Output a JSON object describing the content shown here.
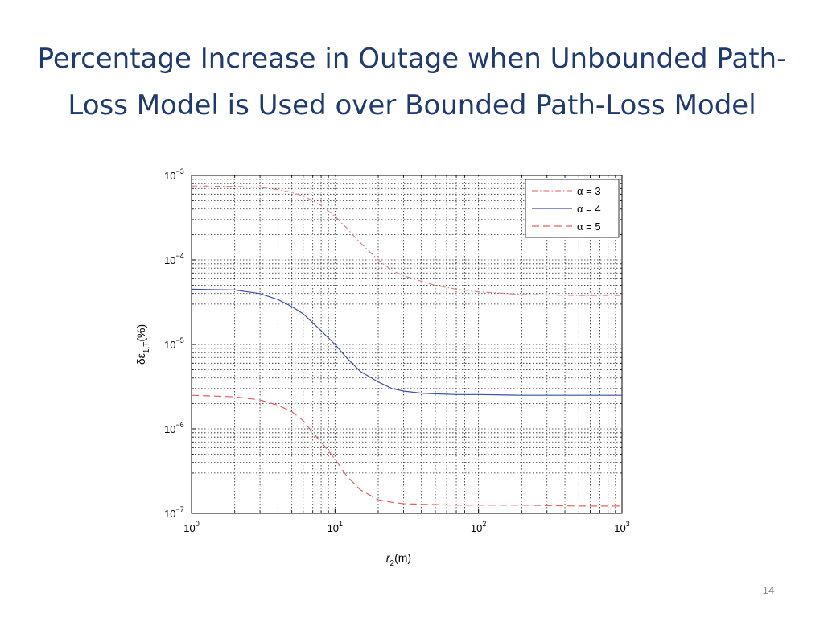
{
  "slide": {
    "title_line1": "Percentage Increase in Outage when Unbounded Path-",
    "title_line2": "Loss Model is Used over Bounded Path-Loss Model",
    "page_number": "14"
  },
  "chart_data": {
    "type": "line",
    "title": "",
    "xlabel_main": "r",
    "xlabel_sub": "2",
    "xlabel_unit": "(m)",
    "ylabel_main": "δε",
    "ylabel_sub": "1,T",
    "ylabel_unit": "(%)",
    "xscale": "log",
    "yscale": "log",
    "xlim": [
      1,
      1000
    ],
    "ylim": [
      1e-07,
      0.001
    ],
    "grid": true,
    "legend_position": "top-right",
    "x_ticks": [
      {
        "value": 1,
        "base": "10",
        "exp": "0"
      },
      {
        "value": 10,
        "base": "10",
        "exp": "1"
      },
      {
        "value": 100,
        "base": "10",
        "exp": "2"
      },
      {
        "value": 1000,
        "base": "10",
        "exp": "3"
      }
    ],
    "y_ticks": [
      {
        "value": 1e-07,
        "base": "10",
        "exp": "−7"
      },
      {
        "value": 1e-06,
        "base": "10",
        "exp": "−6"
      },
      {
        "value": 1e-05,
        "base": "10",
        "exp": "−5"
      },
      {
        "value": 0.0001,
        "base": "10",
        "exp": "−4"
      },
      {
        "value": 0.001,
        "base": "10",
        "exp": "−3"
      }
    ],
    "series": [
      {
        "name": "α = 3",
        "color": "#e08080",
        "dash": "dashdot",
        "x": [
          1,
          2,
          3,
          4,
          5,
          6,
          7,
          8,
          10,
          12,
          15,
          20,
          25,
          30,
          40,
          50,
          70,
          100,
          200,
          500,
          1000
        ],
        "y": [
          0.00075,
          0.00074,
          0.00072,
          0.00068,
          0.00063,
          0.00057,
          0.0005,
          0.00044,
          0.00033,
          0.00024,
          0.00016,
          0.0001,
          7.5e-05,
          6.5e-05,
          5.6e-05,
          5e-05,
          4.5e-05,
          4.2e-05,
          3.9e-05,
          3.8e-05,
          3.8e-05
        ]
      },
      {
        "name": "α = 4",
        "color": "#3c4fa0",
        "dash": "solid",
        "x": [
          1,
          2,
          3,
          4,
          5,
          6,
          7,
          8,
          10,
          12,
          15,
          20,
          25,
          30,
          40,
          50,
          70,
          100,
          200,
          500,
          1000
        ],
        "y": [
          4.5e-05,
          4.4e-05,
          4e-05,
          3.4e-05,
          2.8e-05,
          2.3e-05,
          1.8e-05,
          1.45e-05,
          1e-05,
          7e-06,
          4.8e-06,
          3.6e-06,
          3e-06,
          2.8e-06,
          2.65e-06,
          2.6e-06,
          2.55e-06,
          2.55e-06,
          2.5e-06,
          2.5e-06,
          2.5e-06
        ]
      },
      {
        "name": "α = 5",
        "color": "#e06060",
        "dash": "dashed",
        "x": [
          1,
          2,
          3,
          4,
          5,
          6,
          7,
          8,
          10,
          12,
          15,
          20,
          25,
          30,
          40,
          50,
          70,
          100,
          200,
          500,
          1000
        ],
        "y": [
          2.5e-06,
          2.4e-06,
          2.2e-06,
          1.9e-06,
          1.6e-06,
          1.25e-06,
          9e-07,
          7e-07,
          4.4e-07,
          2.8e-07,
          1.9e-07,
          1.45e-07,
          1.35e-07,
          1.3e-07,
          1.28e-07,
          1.27e-07,
          1.25e-07,
          1.25e-07,
          1.25e-07,
          1.22e-07,
          1.22e-07
        ]
      }
    ]
  }
}
